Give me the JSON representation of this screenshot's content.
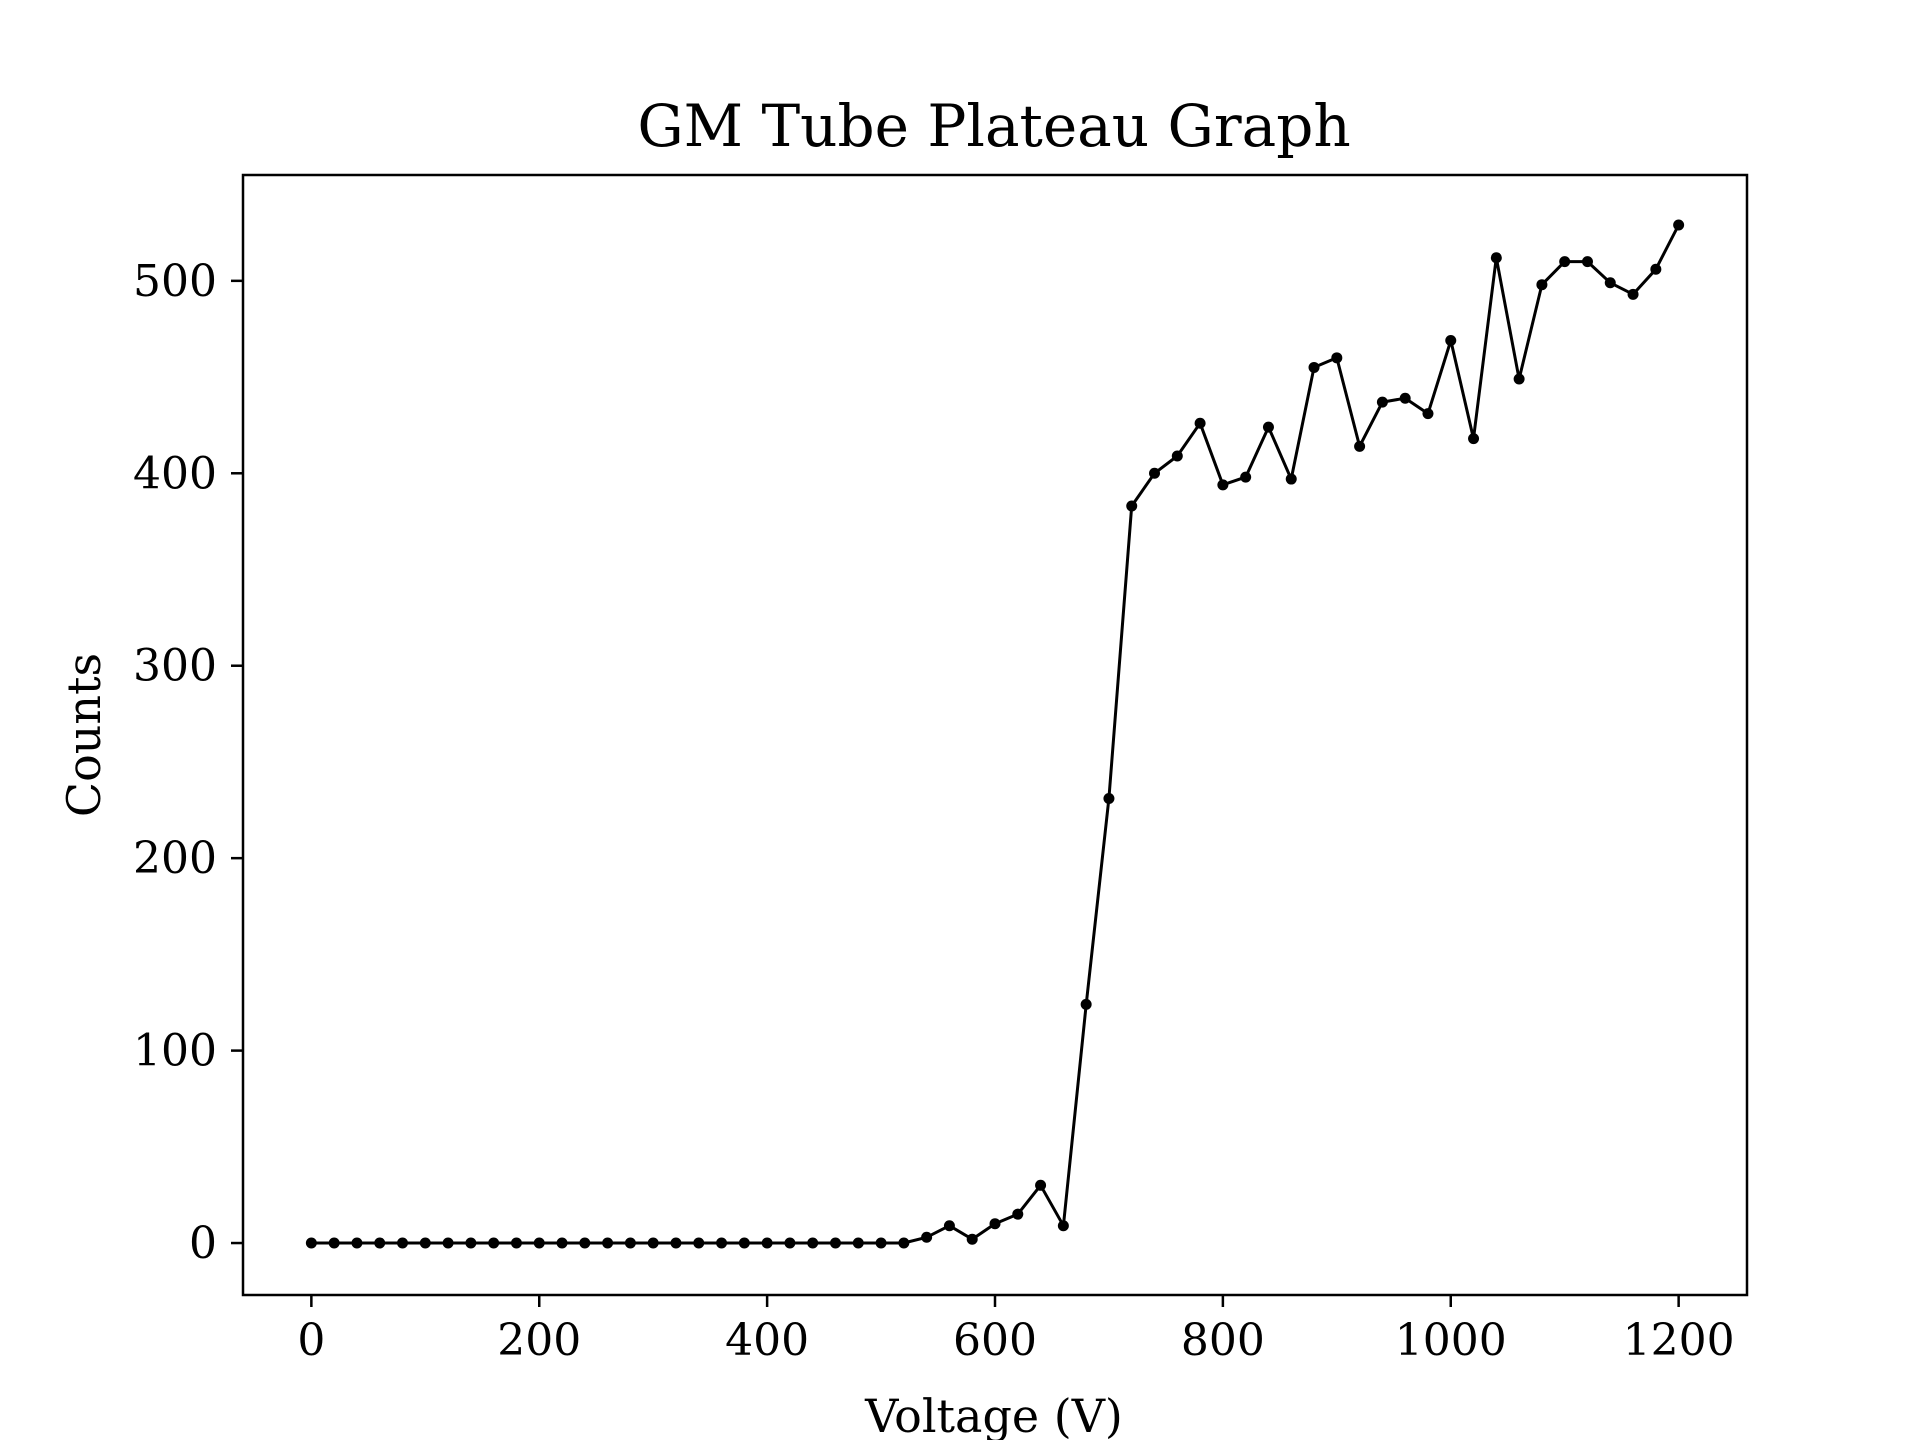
{
  "chart_data": {
    "type": "line",
    "title": "GM Tube Plateau Graph",
    "xlabel": "Voltage (V)",
    "ylabel": "Counts",
    "xlim": [
      -60,
      1260
    ],
    "ylim": [
      -27,
      555
    ],
    "xticks": [
      0,
      200,
      400,
      600,
      800,
      1000,
      1200
    ],
    "yticks": [
      0,
      100,
      200,
      300,
      400,
      500
    ],
    "grid": false,
    "line_color": "#000000",
    "series": [
      {
        "x": [
          0,
          20,
          40,
          60,
          80,
          100,
          120,
          140,
          160,
          180,
          200,
          220,
          240,
          260,
          280,
          300,
          320,
          340,
          360,
          380,
          400,
          420,
          440,
          460,
          480,
          500,
          520,
          540,
          560,
          580,
          600,
          620,
          640,
          660,
          680,
          700,
          720,
          740,
          760,
          780,
          800,
          820,
          840,
          860,
          880,
          900,
          920,
          940,
          960,
          980,
          1000,
          1020,
          1040,
          1060,
          1080,
          1100,
          1120,
          1140,
          1160,
          1180,
          1200
        ],
        "values": [
          0,
          0,
          0,
          0,
          0,
          0,
          0,
          0,
          0,
          0,
          0,
          0,
          0,
          0,
          0,
          0,
          0,
          0,
          0,
          0,
          0,
          0,
          0,
          0,
          0,
          0,
          0,
          3,
          9,
          2,
          10,
          15,
          30,
          9,
          124,
          231,
          383,
          400,
          409,
          426,
          394,
          398,
          424,
          397,
          455,
          460,
          414,
          437,
          439,
          431,
          469,
          418,
          512,
          449,
          498,
          510,
          510,
          499,
          493,
          506,
          529
        ]
      }
    ]
  }
}
